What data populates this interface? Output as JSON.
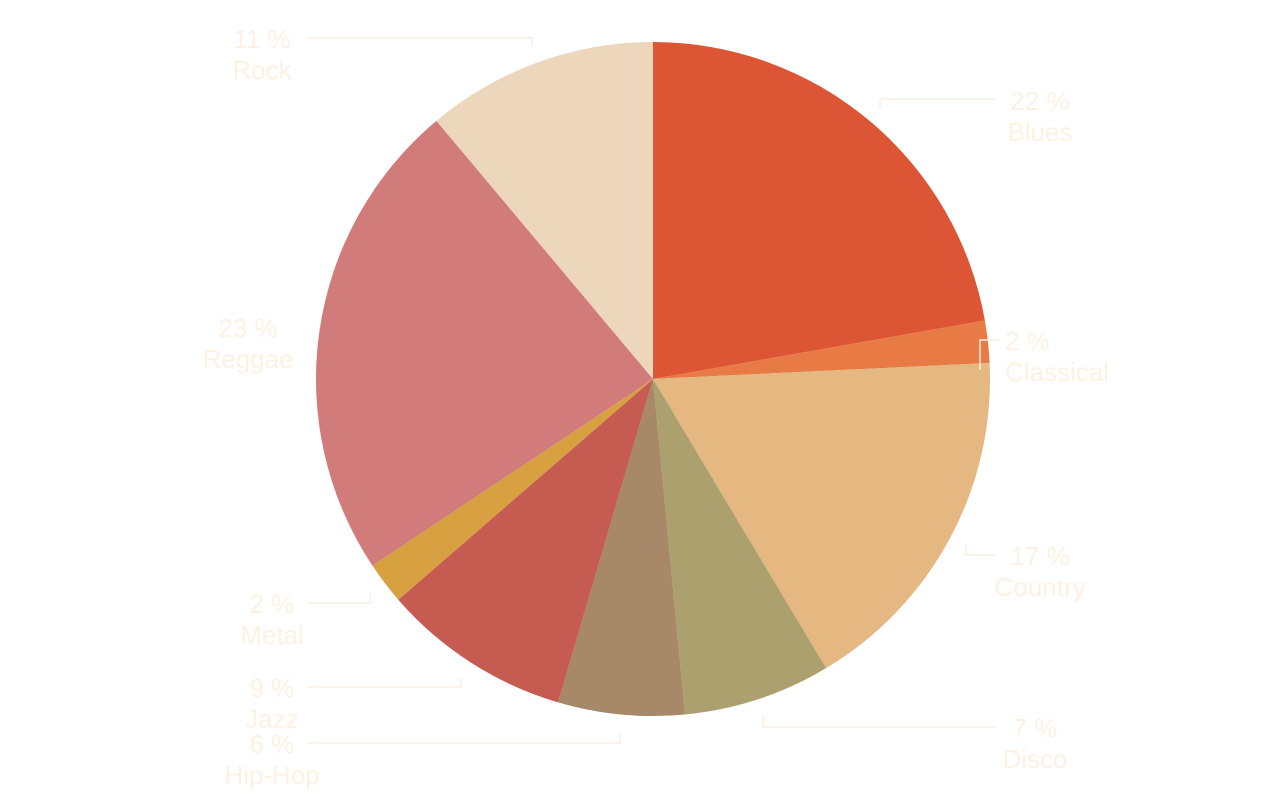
{
  "chart_data": {
    "type": "pie",
    "title": "",
    "slices": [
      {
        "name": "Blues",
        "value": 22,
        "label": "22 %",
        "color": "#dc5534"
      },
      {
        "name": "Classical",
        "value": 2,
        "label": "2 %",
        "color": "#e87b45"
      },
      {
        "name": "Country",
        "value": 17,
        "label": "17 %",
        "color": "#e5b781"
      },
      {
        "name": "Disco",
        "value": 7,
        "label": "7 %",
        "color": "#ada06f"
      },
      {
        "name": "Hip-Hop",
        "value": 6,
        "label": "6 %",
        "color": "#a78868"
      },
      {
        "name": "Jazz",
        "value": 9,
        "label": "9 %",
        "color": "#c55b51"
      },
      {
        "name": "Metal",
        "value": 2,
        "label": "2 %",
        "color": "#d7a040"
      },
      {
        "name": "Reggae",
        "value": 23,
        "label": "23 %",
        "color": "#d27b7b"
      },
      {
        "name": "Rock",
        "value": 11,
        "label": "11 %",
        "color": "#edd7bc"
      }
    ],
    "start_angle": "12 o'clock",
    "direction": "clockwise",
    "labels_outside": true,
    "legend": "none"
  }
}
